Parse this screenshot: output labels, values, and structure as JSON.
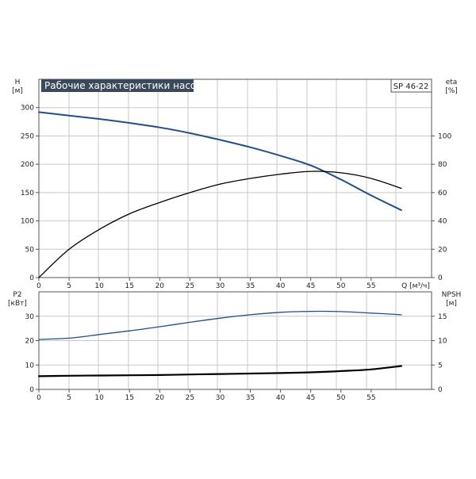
{
  "chart_data": [
    {
      "type": "line",
      "title": "Рабочие характеристики насоса",
      "model": "SP 46-22",
      "y_left_label": [
        "H",
        "[м]"
      ],
      "y_right_label": [
        "eta",
        "[%]"
      ],
      "xlabel": "Q [м³/ч]",
      "x_ticks": [
        0,
        5,
        10,
        15,
        20,
        25,
        30,
        35,
        40,
        45,
        50,
        55
      ],
      "xlim": [
        0,
        65
      ],
      "y_left_ticks": [
        0,
        50,
        100,
        150,
        200,
        250,
        300
      ],
      "ylim_left": [
        0,
        350
      ],
      "y_right_ticks": [
        0,
        20,
        40,
        60,
        80,
        100
      ],
      "ylim_right": [
        0,
        140
      ],
      "grid": true,
      "colors": {
        "head": "#1f4e8c",
        "efficiency": "#000000"
      },
      "series": [
        {
          "axis": "left",
          "color_key": "head",
          "points": [
            [
              0,
              292
            ],
            [
              5,
              286
            ],
            [
              10,
              280
            ],
            [
              15,
              273
            ],
            [
              20,
              265
            ],
            [
              25,
              255
            ],
            [
              30,
              243
            ],
            [
              35,
              230
            ],
            [
              40,
              215
            ],
            [
              45,
              198
            ],
            [
              50,
              173
            ],
            [
              55,
              145
            ],
            [
              60,
              119
            ]
          ]
        },
        {
          "axis": "right",
          "color_key": "efficiency",
          "points": [
            [
              0,
              0
            ],
            [
              5,
              20
            ],
            [
              10,
              34
            ],
            [
              15,
              45
            ],
            [
              20,
              53
            ],
            [
              25,
              60
            ],
            [
              30,
              66
            ],
            [
              35,
              70
            ],
            [
              40,
              73
            ],
            [
              45,
              75
            ],
            [
              50,
              74
            ],
            [
              55,
              70
            ],
            [
              60,
              63
            ]
          ]
        }
      ]
    },
    {
      "type": "line",
      "y_left_label": [
        "P2",
        "[кВт]"
      ],
      "y_right_label": [
        "NPSH",
        "[м]"
      ],
      "x_ticks": [
        0,
        5,
        10,
        15,
        20,
        25,
        30,
        35,
        40,
        45,
        50,
        55
      ],
      "xlim": [
        0,
        65
      ],
      "y_left_ticks": [
        0,
        10,
        20,
        30
      ],
      "ylim_left": [
        0,
        40
      ],
      "y_right_ticks": [
        0,
        5,
        10,
        15
      ],
      "ylim_right": [
        0,
        20
      ],
      "grid": true,
      "colors": {
        "power": "#1f4e8c",
        "npsh": "#000000"
      },
      "series": [
        {
          "axis": "left",
          "color_key": "power",
          "points": [
            [
              0,
              20.5
            ],
            [
              5,
              21
            ],
            [
              10,
              22.5
            ],
            [
              15,
              24
            ],
            [
              20,
              25.7
            ],
            [
              25,
              27.5
            ],
            [
              30,
              29.2
            ],
            [
              35,
              30.6
            ],
            [
              40,
              31.6
            ],
            [
              45,
              32
            ],
            [
              50,
              31.9
            ],
            [
              55,
              31.3
            ],
            [
              60,
              30.6
            ]
          ]
        },
        {
          "axis": "right",
          "color_key": "npsh",
          "points": [
            [
              0,
              2.7
            ],
            [
              5,
              2.8
            ],
            [
              10,
              2.85
            ],
            [
              15,
              2.9
            ],
            [
              20,
              2.95
            ],
            [
              25,
              3.05
            ],
            [
              30,
              3.15
            ],
            [
              35,
              3.25
            ],
            [
              40,
              3.35
            ],
            [
              45,
              3.5
            ],
            [
              50,
              3.75
            ],
            [
              55,
              4.1
            ],
            [
              60,
              4.8
            ]
          ]
        }
      ]
    }
  ]
}
